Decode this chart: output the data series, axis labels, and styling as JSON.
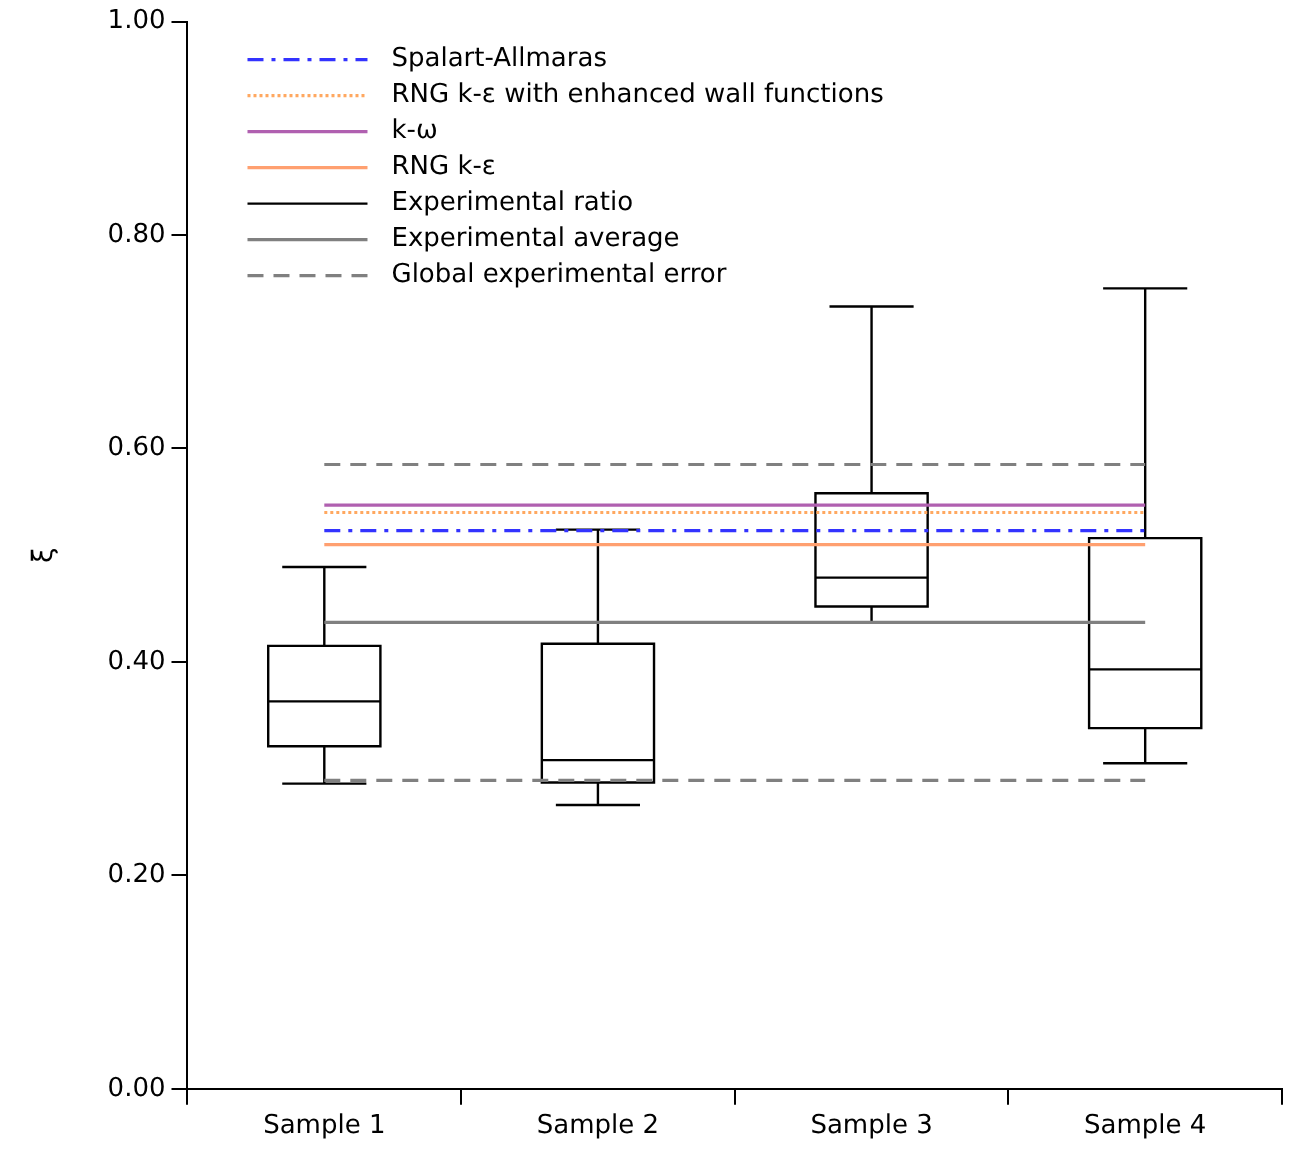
{
  "chart_data": {
    "type": "box",
    "ylabel": "ξ",
    "categories": [
      "Sample 1",
      "Sample 2",
      "Sample 3",
      "Sample 4"
    ],
    "ylim": [
      0,
      1
    ],
    "yticks": [
      {
        "value": 0,
        "label": "0.00"
      },
      {
        "value": 0.2,
        "label": "0.20"
      },
      {
        "value": 0.4,
        "label": "0.40"
      },
      {
        "value": 0.6,
        "label": "0.60"
      },
      {
        "value": 0.8,
        "label": "0.80"
      },
      {
        "value": 1,
        "label": "1.00"
      }
    ],
    "grid": false,
    "legend": "top left",
    "series": [
      {
        "name": "Spalart-Allmaras",
        "type": "line",
        "color": "#3333ff",
        "line_style": "dashdot",
        "values": [
          0.523,
          0.523,
          0.523,
          0.523
        ]
      },
      {
        "name": "RNG k-ε with enhanced wall functions",
        "type": "line",
        "color": "#ffa860",
        "line_style": "dotted",
        "values": [
          0.54,
          0.54,
          0.54,
          0.54
        ]
      },
      {
        "name": "k-ω",
        "type": "line",
        "color": "#b060b0",
        "line_style": "solid",
        "values": [
          0.547,
          0.547,
          0.547,
          0.547
        ]
      },
      {
        "name": "RNG k-ε",
        "type": "line",
        "color": "#ffa070",
        "line_style": "solid",
        "values": [
          0.51,
          0.51,
          0.51,
          0.51
        ]
      },
      {
        "name": "Experimental ratio",
        "type": "box",
        "color": "#000000",
        "boxes": [
          {
            "low": 0.286,
            "q1": 0.321,
            "median": 0.363,
            "q3": 0.415,
            "high": 0.489
          },
          {
            "low": 0.266,
            "q1": 0.287,
            "median": 0.308,
            "q3": 0.417,
            "high": 0.524
          },
          {
            "low": 0.437,
            "q1": 0.452,
            "median": 0.479,
            "q3": 0.558,
            "high": 0.733
          },
          {
            "low": 0.305,
            "q1": 0.338,
            "median": 0.393,
            "q3": 0.516,
            "high": 0.75
          }
        ]
      },
      {
        "name": "Experimental average",
        "type": "line",
        "color": "#808080",
        "line_style": "solid",
        "values": [
          0.437,
          0.437,
          0.437,
          0.437
        ]
      },
      {
        "name": "Global experimental error",
        "type": "line",
        "color": "#808080",
        "line_style": "dashed",
        "values": [
          0.585,
          0.585,
          0.585,
          0.585
        ]
      },
      {
        "type": "line",
        "color": "#808080",
        "line_style": "dashed",
        "values": [
          0.289,
          0.289,
          0.289,
          0.289
        ]
      }
    ]
  }
}
